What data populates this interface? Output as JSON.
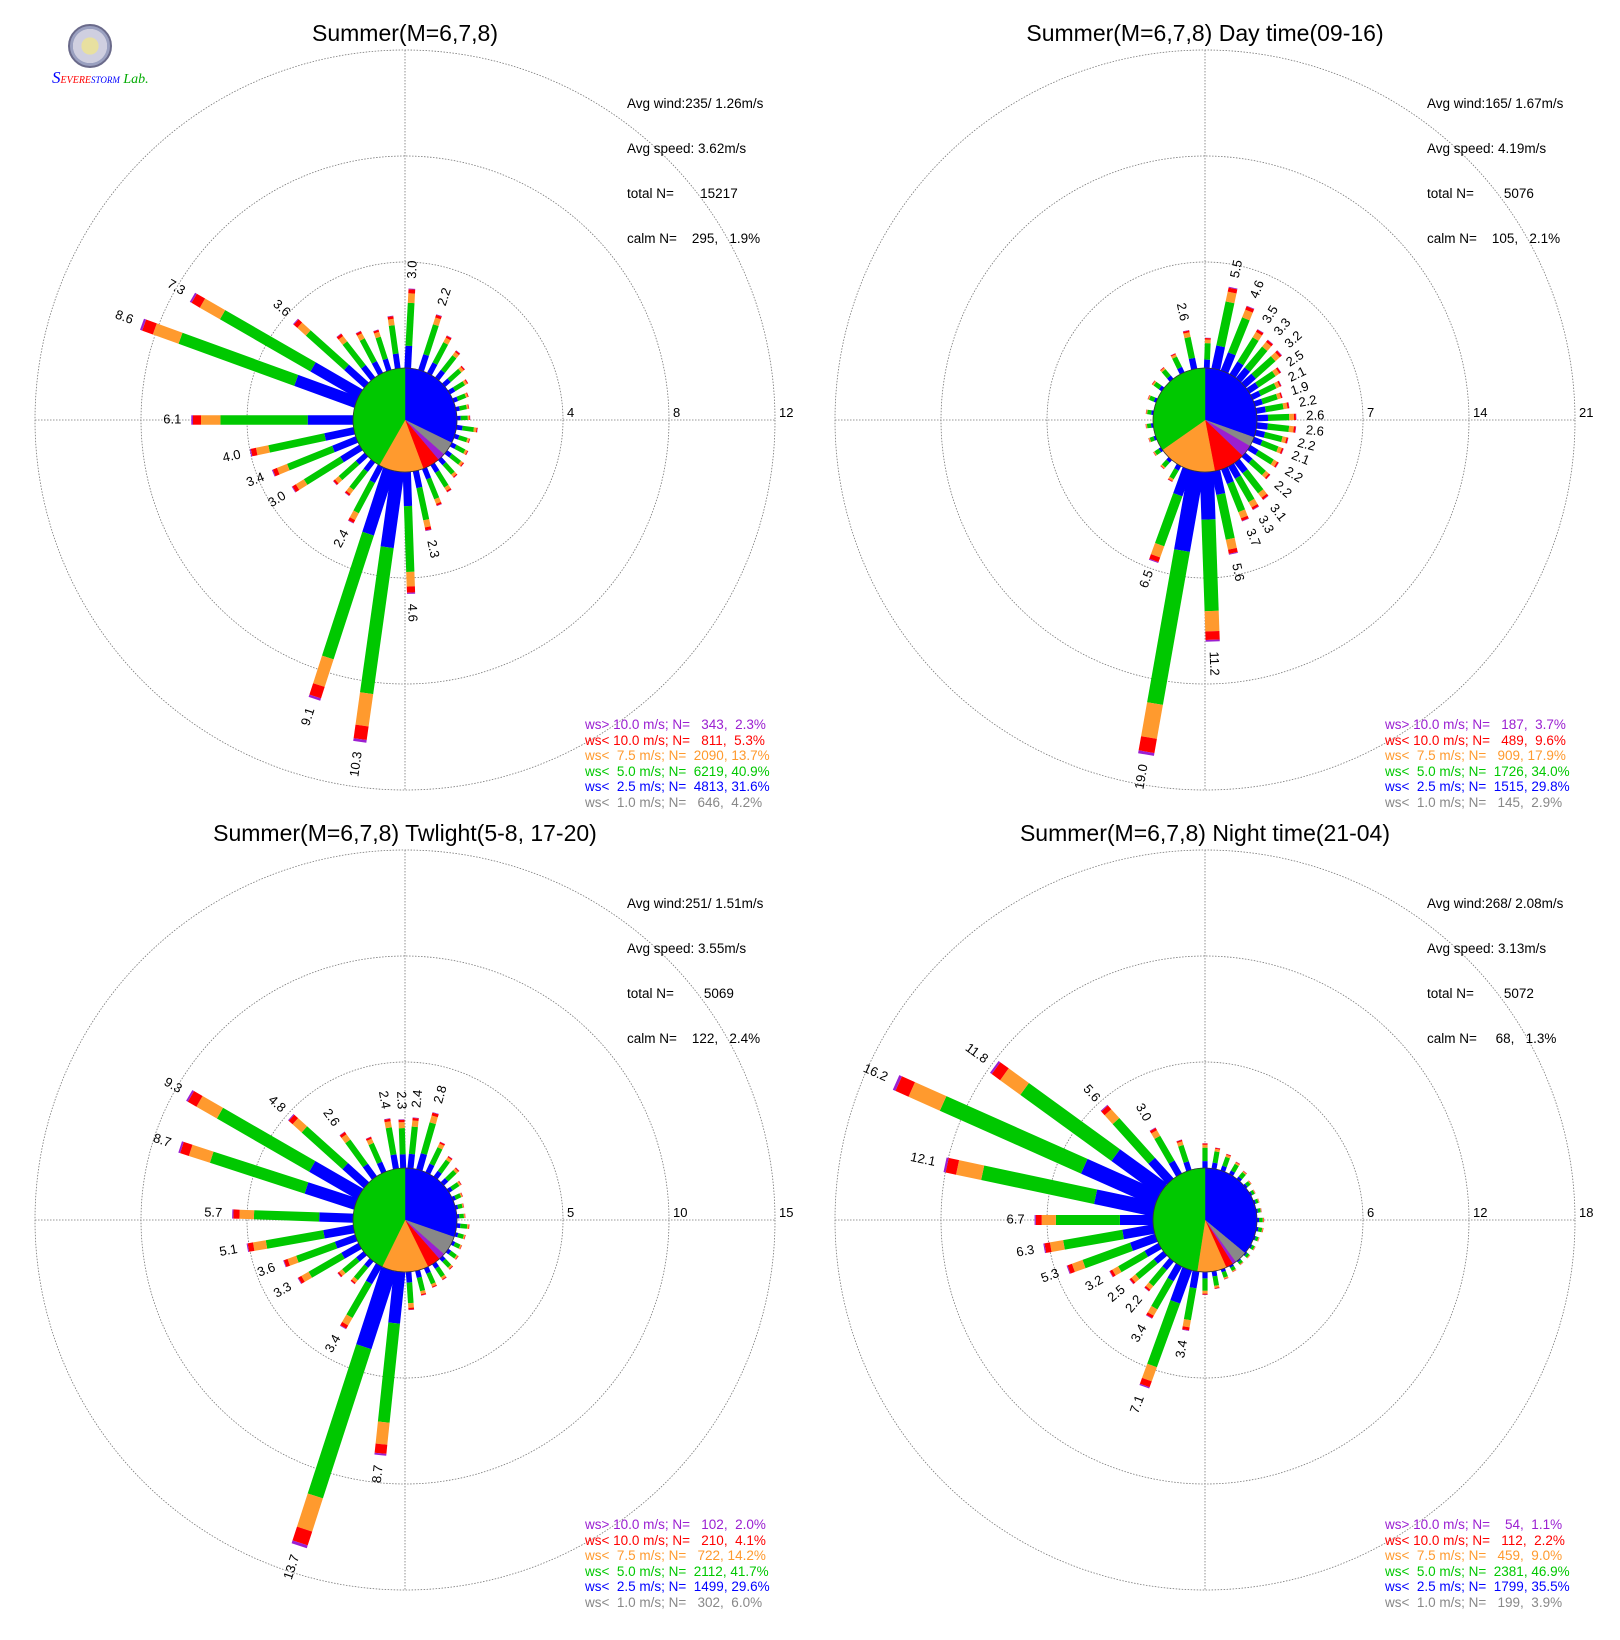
{
  "logo": {
    "text_s": "S",
    "text_evere": "EVERE",
    "text_storm": "STORM",
    "text_lab": "Lab."
  },
  "colors": {
    "gt10": "#9b1fd1",
    "lt10": "#ff0000",
    "lt75": "#ff9a2e",
    "lt50": "#00c800",
    "lt25": "#0000ff",
    "lt10ms": "#888888",
    "lab_green": "#00aa00"
  },
  "chart_data": [
    {
      "type": "wind-rose",
      "title": "Summer(M=6,7,8)",
      "stats": {
        "avg_wind": "Avg wind:235/ 1.26m/s",
        "avg_speed": "Avg speed: 3.62m/s",
        "total": "total N=       15217",
        "calm": "calm N=    295,   1.9%"
      },
      "rings": [
        4,
        8,
        12
      ],
      "ring_labels": [
        "4",
        "8",
        "12"
      ],
      "inner_pie_percent": {
        "gt10": 2.3,
        "lt10": 5.3,
        "lt75": 13.7,
        "lt50": 40.9,
        "lt25": 31.6,
        "lt10ms": 4.2
      },
      "petals": [
        {
          "dir": 3.0,
          "total": 3.0,
          "label": "3.0"
        },
        {
          "dir": 18.0,
          "total": 2.2,
          "label": "2.2"
        },
        {
          "dir": 28.0,
          "total": 1.6
        },
        {
          "dir": 38.0,
          "total": 1.3
        },
        {
          "dir": 48.0,
          "total": 1.0
        },
        {
          "dir": 58.0,
          "total": 0.8
        },
        {
          "dir": 68.0,
          "total": 0.6
        },
        {
          "dir": 78.0,
          "total": 0.5
        },
        {
          "dir": 88.0,
          "total": 0.5
        },
        {
          "dir": 98.0,
          "total": 0.8
        },
        {
          "dir": 108.0,
          "total": 0.6
        },
        {
          "dir": 118.0,
          "total": 0.7
        },
        {
          "dir": 128.0,
          "total": 0.8
        },
        {
          "dir": 138.0,
          "total": 0.9
        },
        {
          "dir": 148.0,
          "total": 1.2
        },
        {
          "dir": 158.0,
          "total": 1.5
        },
        {
          "dir": 168.0,
          "total": 2.3,
          "label": "2.3"
        },
        {
          "dir": 178.0,
          "total": 4.6,
          "label": "4.6"
        },
        {
          "dir": 188.0,
          "total": 10.3,
          "label": "10.3"
        },
        {
          "dir": 198.0,
          "total": 9.1,
          "label": "9.1"
        },
        {
          "dir": 208.0,
          "total": 2.4,
          "label": "2.4"
        },
        {
          "dir": 218.0,
          "total": 1.6
        },
        {
          "dir": 228.0,
          "total": 1.6
        },
        {
          "dir": 238.0,
          "total": 3.0,
          "label": "3.0"
        },
        {
          "dir": 248.0,
          "total": 3.4,
          "label": "3.4"
        },
        {
          "dir": 258.0,
          "total": 4.0,
          "label": "4.0"
        },
        {
          "dir": 270.0,
          "total": 6.1,
          "label": "6.1"
        },
        {
          "dir": 290.0,
          "total": 8.6,
          "label": "8.6"
        },
        {
          "dir": 300.0,
          "total": 7.3,
          "label": "7.3"
        },
        {
          "dir": 312.0,
          "total": 3.6,
          "label": "3.6"
        },
        {
          "dir": 322.0,
          "total": 2.1
        },
        {
          "dir": 332.0,
          "total": 1.8
        },
        {
          "dir": 342.0,
          "total": 1.6
        },
        {
          "dir": 352.0,
          "total": 2.0
        }
      ],
      "legend": [
        {
          "key": "gt10",
          "text": "ws> 10.0 m/s; N=   343,  2.3%"
        },
        {
          "key": "lt10",
          "text": "ws< 10.0 m/s; N=   811,  5.3%"
        },
        {
          "key": "lt75",
          "text": "ws<  7.5 m/s; N=  2090, 13.7%"
        },
        {
          "key": "lt50",
          "text": "ws<  5.0 m/s; N=  6219, 40.9%"
        },
        {
          "key": "lt25",
          "text": "ws<  2.5 m/s; N=  4813, 31.6%"
        },
        {
          "key": "lt10ms",
          "text": "ws<  1.0 m/s; N=   646,  4.2%"
        }
      ]
    },
    {
      "type": "wind-rose",
      "title": "Summer(M=6,7,8) Day time(09-16)",
      "stats": {
        "avg_wind": "Avg wind:165/ 1.67m/s",
        "avg_speed": "Avg speed: 4.19m/s",
        "total": "total N=        5076",
        "calm": "calm N=    105,   2.1%"
      },
      "rings": [
        7,
        14,
        21
      ],
      "ring_labels": [
        "7",
        "14",
        "21"
      ],
      "inner_pie_percent": {
        "gt10": 3.7,
        "lt10": 9.6,
        "lt75": 17.9,
        "lt50": 34.0,
        "lt25": 29.8,
        "lt10ms": 2.9
      },
      "petals": [
        {
          "dir": 348.0,
          "total": 2.6,
          "label": "2.6"
        },
        {
          "dir": 12.0,
          "total": 5.5,
          "label": "5.5"
        },
        {
          "dir": 22.0,
          "total": 4.6,
          "label": "4.6"
        },
        {
          "dir": 32.0,
          "total": 3.5,
          "label": "3.5"
        },
        {
          "dir": 40.0,
          "total": 3.3,
          "label": "3.3"
        },
        {
          "dir": 48.0,
          "total": 3.2,
          "label": "3.2"
        },
        {
          "dir": 56.0,
          "total": 2.5,
          "label": "2.5"
        },
        {
          "dir": 64.0,
          "total": 2.1,
          "label": "2.1"
        },
        {
          "dir": 72.0,
          "total": 1.9,
          "label": "1.9"
        },
        {
          "dir": 80.0,
          "total": 2.2,
          "label": "2.2"
        },
        {
          "dir": 88.0,
          "total": 2.6,
          "label": "2.6"
        },
        {
          "dir": 96.0,
          "total": 2.6,
          "label": "2.6"
        },
        {
          "dir": 104.0,
          "total": 2.2,
          "label": "2.2"
        },
        {
          "dir": 112.0,
          "total": 2.1,
          "label": "2.1"
        },
        {
          "dir": 122.0,
          "total": 2.2,
          "label": "2.2"
        },
        {
          "dir": 132.0,
          "total": 2.2,
          "label": "2.2"
        },
        {
          "dir": 142.0,
          "total": 3.1,
          "label": "3.1"
        },
        {
          "dir": 150.0,
          "total": 3.3,
          "label": "3.3"
        },
        {
          "dir": 158.0,
          "total": 3.7,
          "label": "3.7"
        },
        {
          "dir": 168.0,
          "total": 5.6,
          "label": "5.6"
        },
        {
          "dir": 178.0,
          "total": 11.2,
          "label": "11.2"
        },
        {
          "dir": 190.0,
          "total": 19.0,
          "label": "19.0"
        },
        {
          "dir": 200.0,
          "total": 6.5,
          "label": "6.5"
        },
        {
          "dir": 210.0,
          "total": 1.2
        },
        {
          "dir": 222.0,
          "total": 0.8
        },
        {
          "dir": 236.0,
          "total": 0.6
        },
        {
          "dir": 250.0,
          "total": 0.5
        },
        {
          "dir": 264.0,
          "total": 0.5
        },
        {
          "dir": 278.0,
          "total": 0.5
        },
        {
          "dir": 292.0,
          "total": 0.6
        },
        {
          "dir": 306.0,
          "total": 0.8
        },
        {
          "dir": 320.0,
          "total": 1.0
        },
        {
          "dir": 334.0,
          "total": 1.4
        },
        {
          "dir": 2.0,
          "total": 2.0
        }
      ],
      "legend": [
        {
          "key": "gt10",
          "text": "ws> 10.0 m/s; N=   187,  3.7%"
        },
        {
          "key": "lt10",
          "text": "ws< 10.0 m/s; N=   489,  9.6%"
        },
        {
          "key": "lt75",
          "text": "ws<  7.5 m/s; N=   909, 17.9%"
        },
        {
          "key": "lt50",
          "text": "ws<  5.0 m/s; N=  1726, 34.0%"
        },
        {
          "key": "lt25",
          "text": "ws<  2.5 m/s; N=  1515, 29.8%"
        },
        {
          "key": "lt10ms",
          "text": "ws<  1.0 m/s; N=   145,  2.9%"
        }
      ]
    },
    {
      "type": "wind-rose",
      "title": "Summer(M=6,7,8) Twlight(5-8, 17-20)",
      "stats": {
        "avg_wind": "Avg wind:251/ 1.51m/s",
        "avg_speed": "Avg speed: 3.55m/s",
        "total": "total N=        5069",
        "calm": "calm N=    122,   2.4%"
      },
      "rings": [
        5,
        10,
        15
      ],
      "ring_labels": [
        "5",
        "10",
        "15"
      ],
      "inner_pie_percent": {
        "gt10": 2.0,
        "lt10": 4.1,
        "lt75": 14.2,
        "lt50": 41.7,
        "lt25": 29.6,
        "lt10ms": 6.0
      },
      "petals": [
        {
          "dir": 350.0,
          "total": 2.4,
          "label": "2.4"
        },
        {
          "dir": 358.0,
          "total": 2.3,
          "label": "2.3"
        },
        {
          "dir": 6.0,
          "total": 2.4,
          "label": "2.4"
        },
        {
          "dir": 16.0,
          "total": 2.8,
          "label": "2.8"
        },
        {
          "dir": 26.0,
          "total": 1.6
        },
        {
          "dir": 36.0,
          "total": 1.2
        },
        {
          "dir": 46.0,
          "total": 1.0
        },
        {
          "dir": 56.0,
          "total": 0.7
        },
        {
          "dir": 66.0,
          "total": 0.5
        },
        {
          "dir": 76.0,
          "total": 0.4
        },
        {
          "dir": 86.0,
          "total": 0.4
        },
        {
          "dir": 96.0,
          "total": 0.6
        },
        {
          "dir": 106.0,
          "total": 0.5
        },
        {
          "dir": 116.0,
          "total": 0.5
        },
        {
          "dir": 126.0,
          "total": 0.6
        },
        {
          "dir": 136.0,
          "total": 0.7
        },
        {
          "dir": 146.0,
          "total": 0.9
        },
        {
          "dir": 156.0,
          "total": 1.0
        },
        {
          "dir": 166.0,
          "total": 1.2
        },
        {
          "dir": 176.0,
          "total": 1.8
        },
        {
          "dir": 186.0,
          "total": 8.7,
          "label": "8.7"
        },
        {
          "dir": 198.0,
          "total": 13.7,
          "label": "13.7"
        },
        {
          "dir": 210.0,
          "total": 3.4,
          "label": "3.4"
        },
        {
          "dir": 220.0,
          "total": 1.4
        },
        {
          "dir": 230.0,
          "total": 1.6
        },
        {
          "dir": 240.0,
          "total": 3.3,
          "label": "3.3"
        },
        {
          "dir": 250.0,
          "total": 3.6,
          "label": "3.6"
        },
        {
          "dir": 260.0,
          "total": 5.1,
          "label": "5.1"
        },
        {
          "dir": 272.0,
          "total": 5.7,
          "label": "5.7"
        },
        {
          "dir": 288.0,
          "total": 8.7,
          "label": "8.7"
        },
        {
          "dir": 300.0,
          "total": 9.3,
          "label": "9.3"
        },
        {
          "dir": 312.0,
          "total": 4.8,
          "label": "4.8"
        },
        {
          "dir": 324.0,
          "total": 2.6,
          "label": "2.6"
        },
        {
          "dir": 336.0,
          "total": 1.8
        }
      ],
      "legend": [
        {
          "key": "gt10",
          "text": "ws> 10.0 m/s; N=   102,  2.0%"
        },
        {
          "key": "lt10",
          "text": "ws< 10.0 m/s; N=   210,  4.1%"
        },
        {
          "key": "lt75",
          "text": "ws<  7.5 m/s; N=   722, 14.2%"
        },
        {
          "key": "lt50",
          "text": "ws<  5.0 m/s; N=  2112, 41.7%"
        },
        {
          "key": "lt25",
          "text": "ws<  2.5 m/s; N=  1499, 29.6%"
        },
        {
          "key": "lt10ms",
          "text": "ws<  1.0 m/s; N=   302,  6.0%"
        }
      ]
    },
    {
      "type": "wind-rose",
      "title": "Summer(M=6,7,8) Night time(21-04)",
      "stats": {
        "avg_wind": "Avg wind:268/ 2.08m/s",
        "avg_speed": "Avg speed: 3.13m/s",
        "total": "total N=        5072",
        "calm": "calm N=     68,   1.3%"
      },
      "rings": [
        6,
        12,
        18
      ],
      "ring_labels": [
        "6",
        "12",
        "18"
      ],
      "inner_pie_percent": {
        "gt10": 1.1,
        "lt10": 2.2,
        "lt75": 9.0,
        "lt50": 46.9,
        "lt25": 35.5,
        "lt10ms": 3.9
      },
      "petals": [
        {
          "dir": 0.0,
          "total": 1.4
        },
        {
          "dir": 10.0,
          "total": 1.2
        },
        {
          "dir": 20.0,
          "total": 1.0
        },
        {
          "dir": 30.0,
          "total": 0.8
        },
        {
          "dir": 40.0,
          "total": 0.6
        },
        {
          "dir": 50.0,
          "total": 0.4
        },
        {
          "dir": 60.0,
          "total": 0.3
        },
        {
          "dir": 70.0,
          "total": 0.3
        },
        {
          "dir": 80.0,
          "total": 0.3
        },
        {
          "dir": 90.0,
          "total": 0.4
        },
        {
          "dir": 100.0,
          "total": 0.4
        },
        {
          "dir": 110.0,
          "total": 0.3
        },
        {
          "dir": 120.0,
          "total": 0.3
        },
        {
          "dir": 130.0,
          "total": 0.3
        },
        {
          "dir": 140.0,
          "total": 0.3
        },
        {
          "dir": 150.0,
          "total": 0.4
        },
        {
          "dir": 160.0,
          "total": 0.6
        },
        {
          "dir": 170.0,
          "total": 1.0
        },
        {
          "dir": 180.0,
          "total": 1.3
        },
        {
          "dir": 190.0,
          "total": 3.4,
          "label": "3.4"
        },
        {
          "dir": 200.0,
          "total": 7.1,
          "label": "7.1"
        },
        {
          "dir": 210.0,
          "total": 3.4,
          "label": "3.4"
        },
        {
          "dir": 220.0,
          "total": 2.2,
          "label": "2.2"
        },
        {
          "dir": 230.0,
          "total": 2.5,
          "label": "2.5"
        },
        {
          "dir": 240.0,
          "total": 3.2,
          "label": "3.2"
        },
        {
          "dir": 250.0,
          "total": 5.3,
          "label": "5.3"
        },
        {
          "dir": 260.0,
          "total": 6.3,
          "label": "6.3"
        },
        {
          "dir": 270.0,
          "total": 6.7,
          "label": "6.7"
        },
        {
          "dir": 282.0,
          "total": 12.1,
          "label": "12.1"
        },
        {
          "dir": 294.0,
          "total": 16.2,
          "label": "16.2"
        },
        {
          "dir": 306.0,
          "total": 11.8,
          "label": "11.8"
        },
        {
          "dir": 318.0,
          "total": 5.6,
          "label": "5.6"
        },
        {
          "dir": 330.0,
          "total": 3.0,
          "label": "3.0"
        },
        {
          "dir": 342.0,
          "total": 1.8
        }
      ],
      "legend": [
        {
          "key": "gt10",
          "text": "ws> 10.0 m/s; N=    54,  1.1%"
        },
        {
          "key": "lt10",
          "text": "ws< 10.0 m/s; N=   112,  2.2%"
        },
        {
          "key": "lt75",
          "text": "ws<  7.5 m/s; N=   459,  9.0%"
        },
        {
          "key": "lt50",
          "text": "ws<  5.0 m/s; N=  2381, 46.9%"
        },
        {
          "key": "lt25",
          "text": "ws<  2.5 m/s; N=  1799, 35.5%"
        },
        {
          "key": "lt10ms",
          "text": "ws<  1.0 m/s; N=   199,  3.9%"
        }
      ]
    }
  ]
}
